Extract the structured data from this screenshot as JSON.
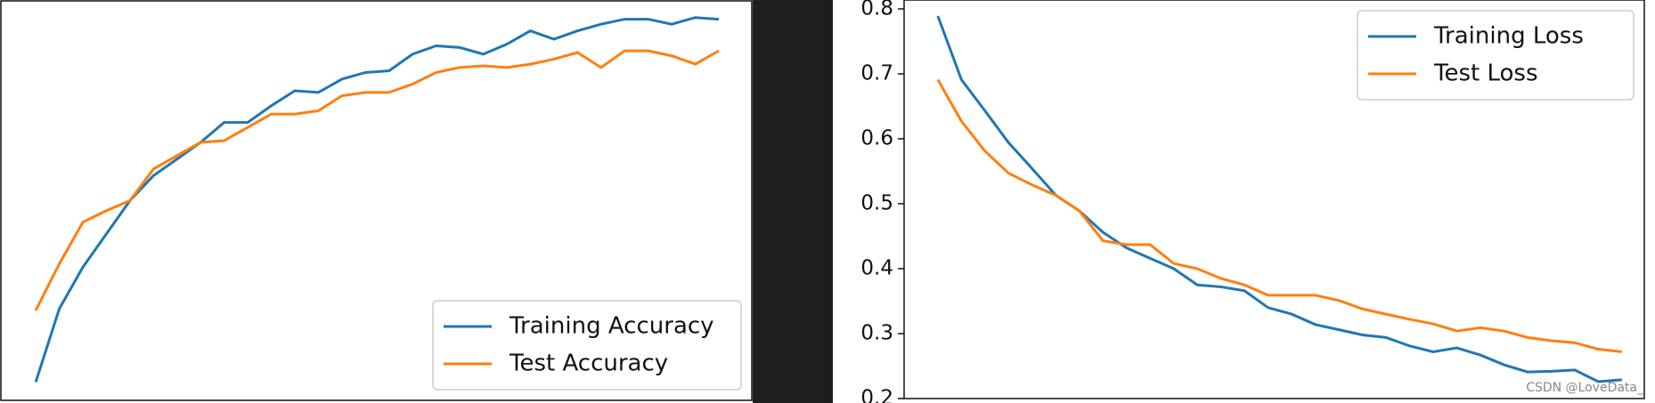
{
  "chart_data": [
    {
      "type": "line",
      "x": [
        1,
        2,
        3,
        4,
        5,
        6,
        7,
        8,
        9,
        10,
        11,
        12,
        13,
        14,
        15,
        16,
        17,
        18,
        19,
        20,
        21,
        22,
        23,
        24,
        25,
        26,
        27,
        28,
        29,
        30
      ],
      "xlim": [
        -0.48,
        31.4
      ],
      "ylim": [
        0.69,
        0.93
      ],
      "legend": "lower right",
      "series": [
        {
          "name": "Training Accuracy",
          "color": "#1f77b4",
          "values": [
            0.701,
            0.745,
            0.77,
            0.79,
            0.81,
            0.825,
            0.835,
            0.845,
            0.857,
            0.857,
            0.867,
            0.876,
            0.875,
            0.883,
            0.887,
            0.888,
            0.898,
            0.903,
            0.902,
            0.898,
            0.904,
            0.912,
            0.907,
            0.912,
            0.916,
            0.919,
            0.919,
            0.916,
            0.92,
            0.919
          ]
        },
        {
          "name": "Test Accuracy",
          "color": "#ff7f0e",
          "values": [
            0.744,
            0.772,
            0.797,
            0.804,
            0.81,
            0.829,
            0.837,
            0.845,
            0.846,
            0.854,
            0.862,
            0.862,
            0.864,
            0.873,
            0.875,
            0.875,
            0.88,
            0.887,
            0.89,
            0.891,
            0.89,
            0.892,
            0.895,
            0.899,
            0.89,
            0.9,
            0.9,
            0.897,
            0.892,
            0.9
          ]
        }
      ]
    },
    {
      "type": "line",
      "x": [
        1,
        2,
        3,
        4,
        5,
        6,
        7,
        8,
        9,
        10,
        11,
        12,
        13,
        14,
        15,
        16,
        17,
        18,
        19,
        20,
        21,
        22,
        23,
        24,
        25,
        26,
        27,
        28,
        29,
        30
      ],
      "xlim": [
        -0.43,
        30.95
      ],
      "ylim": [
        0.2,
        0.8
      ],
      "yticks": [
        0.2,
        0.3,
        0.4,
        0.5,
        0.6,
        0.7,
        0.8
      ],
      "legend": "upper right",
      "series": [
        {
          "name": "Training Loss",
          "color": "#1f77b4",
          "values": [
            0.789,
            0.691,
            0.643,
            0.594,
            0.554,
            0.513,
            0.489,
            0.456,
            0.432,
            0.416,
            0.4,
            0.375,
            0.372,
            0.366,
            0.34,
            0.33,
            0.314,
            0.306,
            0.298,
            0.294,
            0.281,
            0.272,
            0.278,
            0.267,
            0.252,
            0.241,
            0.242,
            0.244,
            0.226,
            0.229
          ]
        },
        {
          "name": "Test Loss",
          "color": "#ff7f0e",
          "values": [
            0.691,
            0.627,
            0.581,
            0.547,
            0.529,
            0.513,
            0.489,
            0.443,
            0.437,
            0.437,
            0.408,
            0.4,
            0.385,
            0.375,
            0.359,
            0.359,
            0.359,
            0.351,
            0.338,
            0.33,
            0.322,
            0.315,
            0.304,
            0.309,
            0.304,
            0.294,
            0.289,
            0.286,
            0.276,
            0.272
          ]
        }
      ]
    }
  ],
  "watermark": "CSDN @LoveData_"
}
